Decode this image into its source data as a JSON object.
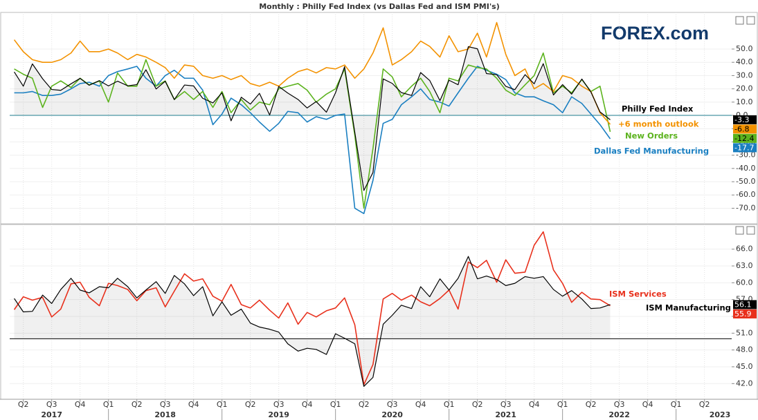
{
  "title": "Monthly : Philly Fed Index (vs Dallas Fed and ISM PMI's)",
  "logo": "FOREX.com",
  "chart_data": [
    {
      "type": "line",
      "baseline": 0,
      "grid": true,
      "x": [
        2017.17,
        2017.25,
        2017.33,
        2017.42,
        2017.5,
        2017.58,
        2017.67,
        2017.75,
        2017.83,
        2017.92,
        2018,
        2018.08,
        2018.17,
        2018.25,
        2018.33,
        2018.42,
        2018.5,
        2018.58,
        2018.67,
        2018.75,
        2018.83,
        2018.92,
        2019,
        2019.08,
        2019.17,
        2019.25,
        2019.33,
        2019.42,
        2019.5,
        2019.58,
        2019.67,
        2019.75,
        2019.83,
        2019.92,
        2020,
        2020.08,
        2020.17,
        2020.25,
        2020.33,
        2020.42,
        2020.5,
        2020.58,
        2020.67,
        2020.75,
        2020.83,
        2020.92,
        2021,
        2021.08,
        2021.17,
        2021.25,
        2021.33,
        2021.42,
        2021.5,
        2021.58,
        2021.67,
        2021.75,
        2021.83,
        2021.92,
        2022,
        2022.08,
        2022.17,
        2022.25,
        2022.33,
        2022.42
      ],
      "xlim": [
        2017.13,
        2023.49
      ],
      "ylim": [
        -80.7,
        77.6
      ],
      "yticks": [
        {
          "value": -70,
          "label": "-70.0"
        },
        {
          "value": -60,
          "label": "-60.0"
        },
        {
          "value": -50,
          "label": "-50.0"
        },
        {
          "value": -40,
          "label": "-40.0"
        },
        {
          "value": -30,
          "label": "-30.0"
        },
        {
          "value": -20,
          "label": "-20.0"
        },
        {
          "value": -10,
          "label": "-10.0"
        },
        {
          "value": 0,
          "label": "0.0"
        },
        {
          "value": 10,
          "label": "10.0"
        },
        {
          "value": 20,
          "label": "20.0"
        },
        {
          "value": 30,
          "label": "30.0"
        },
        {
          "value": 40,
          "label": "40.0"
        },
        {
          "value": 50,
          "label": "50.0"
        }
      ],
      "series": [
        {
          "name": "Philly Fed Index",
          "color": "#000000",
          "values": [
            32.8,
            22,
            38.8,
            27.6,
            19.5,
            18.9,
            23.8,
            27.9,
            22.7,
            26.2,
            22.2,
            25.8,
            22.3,
            23.2,
            34.4,
            19.9,
            25.7,
            11.9,
            22.9,
            22.2,
            12.9,
            9.4,
            17,
            -4.1,
            13.7,
            8.5,
            16.6,
            0.3,
            21.8,
            16.8,
            12,
            5.6,
            10.4,
            2.4,
            17,
            36.7,
            -12.7,
            -56.6,
            -43.1,
            27.5,
            24.1,
            17.2,
            15,
            32.3,
            26.3,
            11.1,
            26.5,
            23.1,
            51.8,
            50.2,
            31.5,
            30.7,
            21.9,
            19.4,
            30.7,
            23.8,
            39,
            15.4,
            23.2,
            16,
            27.4,
            17.6,
            2.6,
            -3.3
          ]
        },
        {
          "name": "+6 month outlook",
          "color": "#f39200",
          "values": [
            57,
            48,
            42,
            40,
            40,
            42,
            47,
            56,
            48,
            48,
            50,
            47,
            42,
            46,
            44,
            40,
            36,
            28,
            38,
            37,
            30,
            28,
            30,
            27,
            30,
            24,
            22,
            25,
            22,
            28,
            33,
            35,
            32,
            36,
            35,
            38,
            28,
            35,
            47,
            66,
            38,
            42,
            48,
            56,
            52,
            44,
            60,
            48,
            50,
            62,
            44,
            70,
            46,
            30,
            35,
            20,
            24,
            18,
            30,
            28,
            22,
            18,
            2,
            -6.8
          ]
        },
        {
          "name": "New Orders",
          "color": "#5cb31e",
          "values": [
            35,
            31,
            28,
            6,
            22,
            26,
            21,
            28,
            23,
            26,
            10,
            32,
            22,
            22,
            42,
            22,
            26,
            12,
            18,
            12,
            18,
            6,
            18,
            2,
            12,
            4,
            10,
            8,
            20,
            22,
            24,
            19,
            10,
            16,
            20,
            35,
            -15,
            -70,
            -25,
            35,
            29,
            14,
            22,
            28,
            18,
            2,
            28,
            26,
            38,
            36,
            35,
            28,
            19,
            15,
            23,
            30,
            47,
            17,
            22,
            17,
            27,
            18,
            22,
            -12.4
          ]
        },
        {
          "name": "Dallas Fed Manufacturing",
          "color": "#1a7fc1",
          "values": [
            17,
            17,
            18,
            15,
            15,
            16,
            20,
            24,
            25,
            22,
            30,
            33,
            35,
            37,
            28,
            22,
            30,
            34,
            28,
            28,
            19,
            -7,
            1,
            13,
            8,
            2,
            -5,
            -12,
            -6,
            3,
            2,
            -5,
            -1,
            -3,
            0,
            1,
            -70,
            -74,
            -49,
            -6,
            -3,
            8,
            14,
            20,
            12,
            10,
            7,
            17,
            28,
            37,
            34,
            31,
            27,
            17,
            14,
            14,
            11,
            8,
            2,
            14,
            9,
            1,
            -7,
            -17.7
          ]
        }
      ]
    },
    {
      "type": "line",
      "baseline": 50,
      "grid": true,
      "x": [
        2017.17,
        2017.25,
        2017.33,
        2017.42,
        2017.5,
        2017.58,
        2017.67,
        2017.75,
        2017.83,
        2017.92,
        2018,
        2018.08,
        2018.17,
        2018.25,
        2018.33,
        2018.42,
        2018.5,
        2018.58,
        2018.67,
        2018.75,
        2018.83,
        2018.92,
        2019,
        2019.08,
        2019.17,
        2019.25,
        2019.33,
        2019.42,
        2019.5,
        2019.58,
        2019.67,
        2019.75,
        2019.83,
        2019.92,
        2020,
        2020.08,
        2020.17,
        2020.25,
        2020.33,
        2020.42,
        2020.5,
        2020.58,
        2020.67,
        2020.75,
        2020.83,
        2020.92,
        2021,
        2021.08,
        2021.17,
        2021.25,
        2021.33,
        2021.42,
        2021.5,
        2021.58,
        2021.67,
        2021.75,
        2021.83,
        2021.92,
        2022,
        2022.08,
        2022.17,
        2022.25,
        2022.33,
        2022.42
      ],
      "xlim": [
        2017.13,
        2023.49
      ],
      "ylim": [
        39.2,
        70.4
      ],
      "xticks": [
        {
          "value": 2017.25,
          "label": "Q2"
        },
        {
          "value": 2017.5,
          "label": "Q3"
        },
        {
          "value": 2017.75,
          "label": "Q4"
        },
        {
          "value": 2018,
          "label": "Q1"
        },
        {
          "value": 2018.25,
          "label": "Q2"
        },
        {
          "value": 2018.5,
          "label": "Q3"
        },
        {
          "value": 2018.75,
          "label": "Q4"
        },
        {
          "value": 2019,
          "label": "Q1"
        },
        {
          "value": 2019.25,
          "label": "Q2"
        },
        {
          "value": 2019.5,
          "label": "Q3"
        },
        {
          "value": 2019.75,
          "label": "Q4"
        },
        {
          "value": 2020,
          "label": "Q1"
        },
        {
          "value": 2020.25,
          "label": "Q2"
        },
        {
          "value": 2020.5,
          "label": "Q3"
        },
        {
          "value": 2020.75,
          "label": "Q4"
        },
        {
          "value": 2021,
          "label": "Q1"
        },
        {
          "value": 2021.25,
          "label": "Q2"
        },
        {
          "value": 2021.5,
          "label": "Q3"
        },
        {
          "value": 2021.75,
          "label": "Q4"
        },
        {
          "value": 2022,
          "label": "Q1"
        },
        {
          "value": 2022.25,
          "label": "Q2"
        },
        {
          "value": 2022.5,
          "label": "Q3"
        },
        {
          "value": 2022.75,
          "label": "Q4"
        },
        {
          "value": 2023,
          "label": "Q1"
        },
        {
          "value": 2023.25,
          "label": "Q2"
        }
      ],
      "year_ticks": [
        2017,
        2018,
        2019,
        2020,
        2021,
        2022,
        2023
      ],
      "yticks": [
        {
          "value": 42,
          "label": "42.0"
        },
        {
          "value": 45,
          "label": "45.0"
        },
        {
          "value": 48,
          "label": "48.0"
        },
        {
          "value": 51,
          "label": "51.0"
        },
        {
          "value": 54,
          "label": "54.0"
        },
        {
          "value": 57,
          "label": "57.0"
        },
        {
          "value": 60,
          "label": "60.0"
        },
        {
          "value": 63,
          "label": "63.0"
        },
        {
          "value": 66,
          "label": "66.0"
        }
      ],
      "series": [
        {
          "name": "ISM Manufacturing",
          "color": "#000000",
          "values": [
            57.2,
            54.8,
            54.9,
            57.8,
            56.3,
            58.8,
            60.8,
            58.7,
            58.2,
            59.3,
            59.1,
            60.8,
            59.3,
            57.3,
            58.7,
            60.2,
            58.1,
            61.3,
            59.8,
            57.7,
            59.3,
            54.1,
            56.6,
            54.2,
            55.3,
            52.8,
            52.1,
            51.7,
            51.2,
            49.1,
            47.8,
            48.3,
            48.1,
            47.2,
            50.9,
            50.1,
            49.1,
            41.5,
            43.1,
            52.6,
            54.2,
            56,
            55.4,
            59.3,
            57.5,
            60.7,
            58.7,
            60.8,
            64.7,
            60.7,
            61.2,
            60.6,
            59.5,
            59.9,
            61.1,
            60.8,
            61.1,
            58.8,
            57.6,
            58.6,
            57.1,
            55.4,
            55.5,
            56.1
          ]
        },
        {
          "name": "ISM Services",
          "color": "#e8301c",
          "values": [
            55.2,
            57.5,
            56.9,
            57.4,
            53.9,
            55.3,
            59.8,
            60.1,
            57.4,
            55.9,
            59.9,
            59.5,
            58.8,
            56.8,
            58.6,
            59.1,
            55.7,
            58.5,
            61.6,
            60.3,
            60.7,
            57.6,
            56.7,
            59.7,
            56.1,
            55.5,
            56.9,
            55.1,
            53.7,
            56.4,
            52.6,
            54.7,
            53.9,
            55,
            55.5,
            57.3,
            52.5,
            41.8,
            45.4,
            57.1,
            58.1,
            56.9,
            57.8,
            56.6,
            55.9,
            57.2,
            58.7,
            55.3,
            63.7,
            62.7,
            64,
            60.1,
            64.1,
            61.7,
            61.9,
            66.7,
            69.1,
            62.3,
            59.9,
            56.5,
            58.3,
            57.1,
            57,
            55.9
          ]
        }
      ]
    }
  ]
}
